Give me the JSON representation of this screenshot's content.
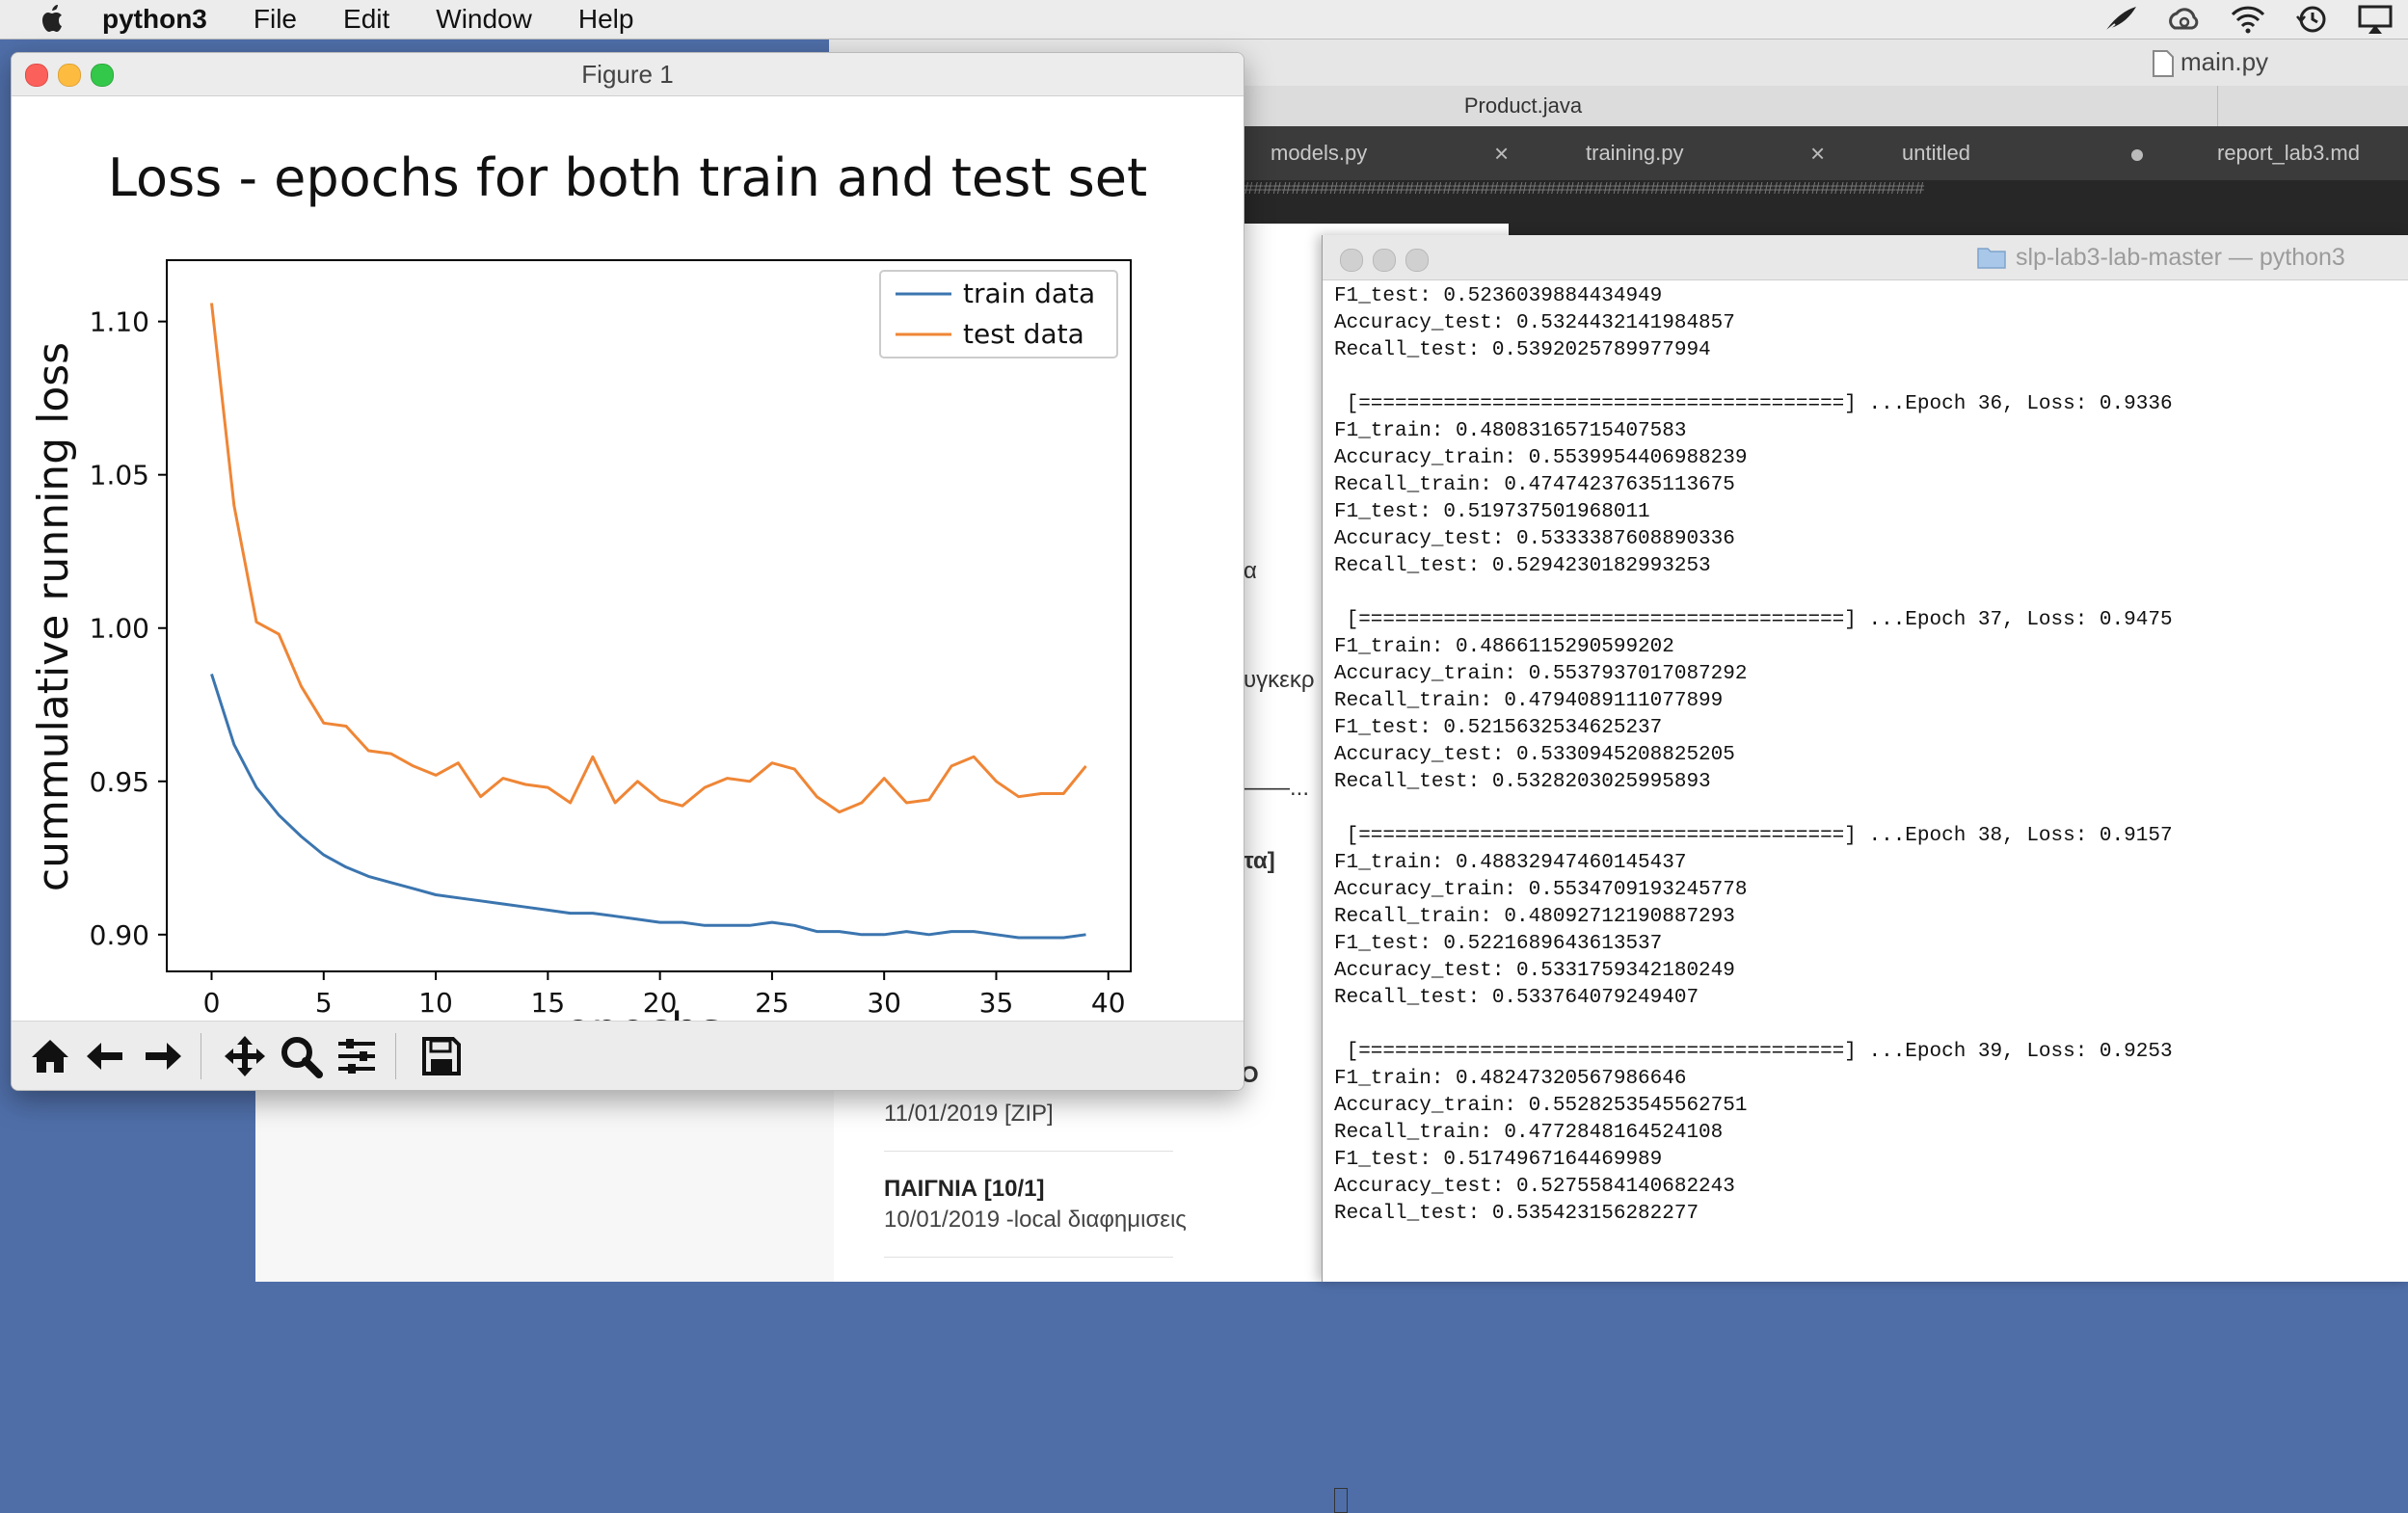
{
  "menubar": {
    "app_name": "python3",
    "items": [
      "File",
      "Edit",
      "Window",
      "Help"
    ],
    "status_icons": [
      "quill-icon",
      "creative-cloud-icon",
      "wifi-icon",
      "time-machine-icon",
      "airplay-icon"
    ]
  },
  "editor": {
    "title": "main.py",
    "tab_row1": "Product.java",
    "tabs": [
      {
        "label": "models.py",
        "marker": "×"
      },
      {
        "label": "training.py",
        "marker": "×"
      },
      {
        "label": "untitled",
        "marker": "dot"
      },
      {
        "label": "report_lab3.md",
        "marker": ""
      }
    ],
    "code_fragment": "########################################################################"
  },
  "webpage": {
    "fragments": [
      "α",
      "υγκεκρ",
      "——...",
      "τα]",
      "Ο"
    ],
    "items": [
      {
        "title": "",
        "meta": "11/01/2019   [ZIP]"
      },
      {
        "title": "ΠΑΙΓΝΙΑ [10/1]",
        "meta": "10/01/2019   -local διαφημισεις"
      }
    ]
  },
  "terminal": {
    "title": "slp-lab3-lab-master — python3",
    "lines": [
      "F1_test: 0.5236039884434949",
      "Accuracy_test: 0.5324432141984857",
      "Recall_test: 0.5392025789977994",
      "",
      " [========================================] ...Epoch 36, Loss: 0.9336",
      "F1_train: 0.48083165715407583",
      "Accuracy_train: 0.5539954406988239",
      "Recall_train: 0.47474237635113675",
      "F1_test: 0.519737501968011",
      "Accuracy_test: 0.5333387608890336",
      "Recall_test: 0.5294230182993253",
      "",
      " [========================================] ...Epoch 37, Loss: 0.9475",
      "F1_train: 0.4866115290599202",
      "Accuracy_train: 0.5537937017087292",
      "Recall_train: 0.4794089111077899",
      "F1_test: 0.5215632534625237",
      "Accuracy_test: 0.5330945208825205",
      "Recall_test: 0.5328203025995893",
      "",
      " [========================================] ...Epoch 38, Loss: 0.9157",
      "F1_train: 0.48832947460145437",
      "Accuracy_train: 0.5534709193245778",
      "Recall_train: 0.48092712190887293",
      "F1_test: 0.5221689643613537",
      "Accuracy_test: 0.5331759342180249",
      "Recall_test: 0.533764079249407",
      "",
      " [========================================] ...Epoch 39, Loss: 0.9253",
      "F1_train: 0.48247320567986646",
      "Accuracy_train: 0.5528253545562751",
      "Recall_train: 0.4772848164524108",
      "F1_test: 0.5174967164469989",
      "Accuracy_test: 0.5275584140682243",
      "Recall_test: 0.535423156282277"
    ]
  },
  "figure": {
    "window_title": "Figure 1",
    "toolbar": [
      "home-icon",
      "back-icon",
      "forward-icon",
      "pan-icon",
      "zoom-icon",
      "subplots-icon",
      "save-icon"
    ]
  },
  "chart_data": {
    "type": "line",
    "title": "Loss - epochs for both train and test set",
    "xlabel": "epochs",
    "ylabel": "cummulative running loss",
    "xlim": [
      -2,
      41
    ],
    "ylim": [
      0.888,
      1.12
    ],
    "xticks": [
      0,
      5,
      10,
      15,
      20,
      25,
      30,
      35,
      40
    ],
    "yticks": [
      0.9,
      0.95,
      1.0,
      1.05,
      1.1
    ],
    "ytick_labels": [
      "0.90",
      "0.95",
      "1.00",
      "1.05",
      "1.10"
    ],
    "legend_position": "top-right",
    "x": [
      0,
      1,
      2,
      3,
      4,
      5,
      6,
      7,
      8,
      9,
      10,
      11,
      12,
      13,
      14,
      15,
      16,
      17,
      18,
      19,
      20,
      21,
      22,
      23,
      24,
      25,
      26,
      27,
      28,
      29,
      30,
      31,
      32,
      33,
      34,
      35,
      36,
      37,
      38,
      39
    ],
    "series": [
      {
        "name": "train data",
        "color": "#3b75af",
        "values": [
          0.985,
          0.962,
          0.948,
          0.939,
          0.932,
          0.926,
          0.922,
          0.919,
          0.917,
          0.915,
          0.913,
          0.912,
          0.911,
          0.91,
          0.909,
          0.908,
          0.907,
          0.907,
          0.906,
          0.905,
          0.904,
          0.904,
          0.903,
          0.903,
          0.903,
          0.904,
          0.903,
          0.901,
          0.901,
          0.9,
          0.9,
          0.901,
          0.9,
          0.901,
          0.901,
          0.9,
          0.899,
          0.899,
          0.899,
          0.9
        ]
      },
      {
        "name": "test data",
        "color": "#ef8636",
        "values": [
          1.106,
          1.04,
          1.002,
          0.998,
          0.981,
          0.969,
          0.968,
          0.96,
          0.959,
          0.955,
          0.952,
          0.956,
          0.945,
          0.951,
          0.949,
          0.948,
          0.943,
          0.958,
          0.943,
          0.95,
          0.944,
          0.942,
          0.948,
          0.951,
          0.95,
          0.956,
          0.954,
          0.945,
          0.94,
          0.943,
          0.951,
          0.943,
          0.944,
          0.955,
          0.958,
          0.95,
          0.945,
          0.946,
          0.946,
          0.955
        ]
      }
    ]
  }
}
